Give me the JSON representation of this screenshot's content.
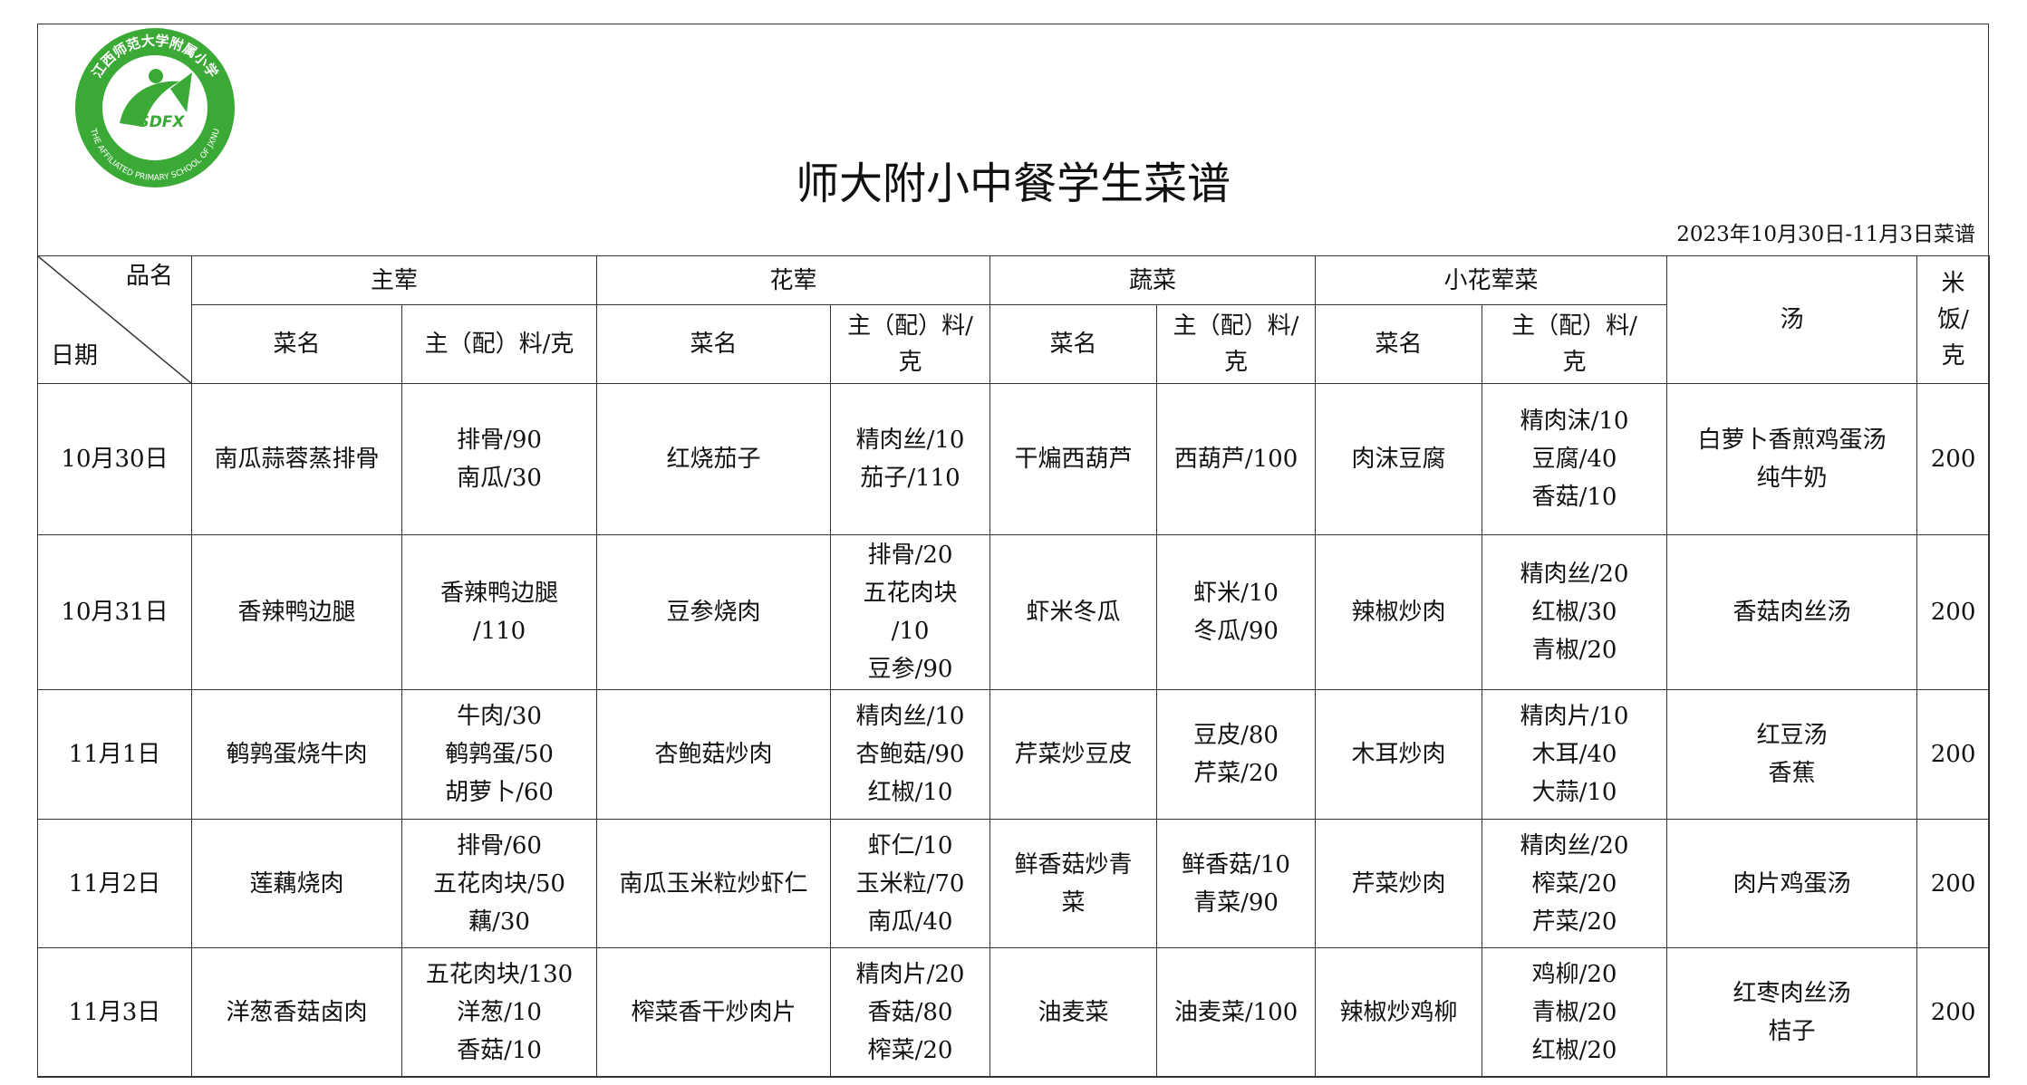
{
  "logo": {
    "text": "SDFX",
    "ring_cn": "江西师范大学附属小学",
    "ring_en": "THE AFFILIATED PRIMARY SCHOOL OF JXNU"
  },
  "header": {
    "title": "师大附小中餐学生菜谱",
    "date_note": "2023年10月30日-11月3日菜谱"
  },
  "table": {
    "corner": {
      "top": "品名",
      "bottom": "日期"
    },
    "groups": [
      "主荤",
      "花荤",
      "蔬菜",
      "小花荤菜"
    ],
    "soup_header": "汤",
    "rice_header": [
      "米",
      "饭/",
      "克"
    ],
    "subheaders": [
      [
        "菜名"
      ],
      [
        "主（配）料/克"
      ],
      [
        "菜名"
      ],
      [
        "主（配）料/",
        "克"
      ],
      [
        "菜名"
      ],
      [
        "主（配）料/",
        "克"
      ],
      [
        "菜名"
      ],
      [
        "主（配）料/",
        "克"
      ]
    ],
    "rows": [
      {
        "date": "10月30日",
        "cells": [
          [
            "南瓜蒜蓉蒸排骨"
          ],
          [
            "排骨/90",
            "南瓜/30"
          ],
          [
            "红烧茄子"
          ],
          [
            "精肉丝/10",
            "茄子/110"
          ],
          [
            "干煸西葫芦"
          ],
          [
            "西葫芦/100"
          ],
          [
            "肉沫豆腐"
          ],
          [
            "精肉沫/10",
            "豆腐/40",
            "香菇/10"
          ],
          [
            "白萝卜香煎鸡蛋汤",
            "纯牛奶"
          ]
        ],
        "rice": 200
      },
      {
        "date": "10月31日",
        "cells": [
          [
            "香辣鸭边腿"
          ],
          [
            "香辣鸭边腿",
            "/110"
          ],
          [
            "豆参烧肉"
          ],
          [
            "排骨/20",
            "五花肉块",
            "/10",
            "豆参/90"
          ],
          [
            "虾米冬瓜"
          ],
          [
            "虾米/10",
            "冬瓜/90"
          ],
          [
            "辣椒炒肉"
          ],
          [
            "精肉丝/20",
            "红椒/30",
            "青椒/20"
          ],
          [
            "香菇肉丝汤"
          ]
        ],
        "rice": 200
      },
      {
        "date": "11月1日",
        "cells": [
          [
            "鹌鹑蛋烧牛肉"
          ],
          [
            "牛肉/30",
            "鹌鹑蛋/50",
            "胡萝卜/60"
          ],
          [
            "杏鲍菇炒肉"
          ],
          [
            "精肉丝/10",
            "杏鲍菇/90",
            "红椒/10"
          ],
          [
            "芹菜炒豆皮"
          ],
          [
            "豆皮/80",
            "芹菜/20"
          ],
          [
            "木耳炒肉"
          ],
          [
            "精肉片/10",
            "木耳/40",
            "大蒜/10"
          ],
          [
            "红豆汤",
            "香蕉"
          ]
        ],
        "rice": 200
      },
      {
        "date": "11月2日",
        "cells": [
          [
            "莲藕烧肉"
          ],
          [
            "排骨/60",
            "五花肉块/50",
            "藕/30"
          ],
          [
            "南瓜玉米粒炒虾仁"
          ],
          [
            "虾仁/10",
            "玉米粒/70",
            "南瓜/40"
          ],
          [
            "鲜香菇炒青",
            "菜"
          ],
          [
            "鲜香菇/10",
            "青菜/90"
          ],
          [
            "芹菜炒肉"
          ],
          [
            "精肉丝/20",
            "榨菜/20",
            "芹菜/20"
          ],
          [
            "肉片鸡蛋汤"
          ]
        ],
        "rice": 200
      },
      {
        "date": "11月3日",
        "cells": [
          [
            "洋葱香菇卤肉"
          ],
          [
            "五花肉块/130",
            "洋葱/10",
            "香菇/10"
          ],
          [
            "榨菜香干炒肉片"
          ],
          [
            "精肉片/20",
            "香菇/80",
            "榨菜/20"
          ],
          [
            "油麦菜"
          ],
          [
            "油麦菜/100"
          ],
          [
            "辣椒炒鸡柳"
          ],
          [
            "鸡柳/20",
            "青椒/20",
            "红椒/20"
          ],
          [
            "红枣肉丝汤",
            "桔子"
          ]
        ],
        "rice": 200
      }
    ]
  }
}
